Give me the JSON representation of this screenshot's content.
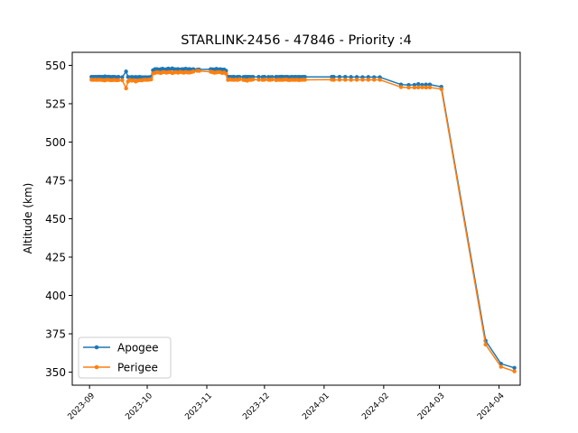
{
  "chart_data": {
    "type": "line",
    "title": "STARLINK-2456 - 47846 - Priority :4",
    "xlabel": "",
    "ylabel": "Altitude (km)",
    "ylim": [
      341.5,
      558.5
    ],
    "xlim": [
      "2023-08-23",
      "2024-04-12"
    ],
    "y_ticks": [
      350,
      375,
      400,
      425,
      450,
      475,
      500,
      525,
      550
    ],
    "x_ticks": [
      "2023-09",
      "2023-10",
      "2023-11",
      "2023-12",
      "2024-01",
      "2024-02",
      "2024-03",
      "2024-04"
    ],
    "x_tick_dates": [
      "2023-09-01",
      "2023-10-01",
      "2023-11-01",
      "2023-12-01",
      "2024-01-01",
      "2024-02-01",
      "2024-03-01",
      "2024-04-01"
    ],
    "grid": false,
    "legend_position": "lower-left",
    "x": [
      "2023-09-02",
      "2023-09-03",
      "2023-09-04",
      "2023-09-05",
      "2023-09-06",
      "2023-09-07",
      "2023-09-08",
      "2023-09-09",
      "2023-09-10",
      "2023-09-11",
      "2023-09-12",
      "2023-09-13",
      "2023-09-14",
      "2023-09-15",
      "2023-09-16",
      "2023-09-18",
      "2023-09-20",
      "2023-09-21",
      "2023-09-22",
      "2023-09-23",
      "2023-09-24",
      "2023-09-25",
      "2023-09-26",
      "2023-09-27",
      "2023-09-28",
      "2023-09-29",
      "2023-09-30",
      "2023-10-01",
      "2023-10-02",
      "2023-10-03",
      "2023-10-04",
      "2023-10-05",
      "2023-10-06",
      "2023-10-07",
      "2023-10-08",
      "2023-10-09",
      "2023-10-10",
      "2023-10-11",
      "2023-10-12",
      "2023-10-13",
      "2023-10-14",
      "2023-10-15",
      "2023-10-16",
      "2023-10-17",
      "2023-10-18",
      "2023-10-19",
      "2023-10-20",
      "2023-10-21",
      "2023-10-22",
      "2023-10-23",
      "2023-10-24",
      "2023-10-25",
      "2023-10-27",
      "2023-10-28",
      "2023-11-03",
      "2023-11-04",
      "2023-11-05",
      "2023-11-06",
      "2023-11-07",
      "2023-11-08",
      "2023-11-09",
      "2023-11-10",
      "2023-11-11",
      "2023-11-12",
      "2023-11-13",
      "2023-11-14",
      "2023-11-15",
      "2023-11-16",
      "2023-11-17",
      "2023-11-18",
      "2023-11-20",
      "2023-11-21",
      "2023-11-22",
      "2023-11-23",
      "2023-11-24",
      "2023-11-25",
      "2023-11-28",
      "2023-11-30",
      "2023-12-01",
      "2023-12-03",
      "2023-12-04",
      "2023-12-05",
      "2023-12-07",
      "2023-12-08",
      "2023-12-09",
      "2023-12-10",
      "2023-12-11",
      "2023-12-12",
      "2023-12-13",
      "2023-12-14",
      "2023-12-15",
      "2023-12-16",
      "2023-12-17",
      "2023-12-18",
      "2023-12-19",
      "2023-12-20",
      "2023-12-21",
      "2023-12-22",
      "2024-01-05",
      "2024-01-06",
      "2024-01-09",
      "2024-01-12",
      "2024-01-15",
      "2024-01-18",
      "2024-01-21",
      "2024-01-24",
      "2024-01-27",
      "2024-01-30",
      "2024-02-10",
      "2024-02-14",
      "2024-02-17",
      "2024-02-19",
      "2024-02-21",
      "2024-02-23",
      "2024-02-25",
      "2024-03-02",
      "2024-03-25",
      "2024-04-02",
      "2024-04-09"
    ],
    "series": [
      {
        "name": "Apogee",
        "color": "#1f77b4",
        "values": [
          542.5,
          542.5,
          542.5,
          542.5,
          542.6,
          542.5,
          542.5,
          542.8,
          542.5,
          542.6,
          542.4,
          542.5,
          542.5,
          542.3,
          542.5,
          542.3,
          546.0,
          542.4,
          542.3,
          542.4,
          542.3,
          542.4,
          542.3,
          542.5,
          542.3,
          542.2,
          542.3,
          542.2,
          542.3,
          542.5,
          546.8,
          547.5,
          547.6,
          547.2,
          547.5,
          547.8,
          547.3,
          547.5,
          547.9,
          547.4,
          548.0,
          547.5,
          547.4,
          547.6,
          547.2,
          547.5,
          547.5,
          547.8,
          547.4,
          547.6,
          547.3,
          547.5,
          547.2,
          547.3,
          547.5,
          547.4,
          547.3,
          547.7,
          547.3,
          547.5,
          547.2,
          547.3,
          546.5,
          542.5,
          542.5,
          542.4,
          542.6,
          542.3,
          542.5,
          542.5,
          542.4,
          542.5,
          542.5,
          542.5,
          542.4,
          542.5,
          542.5,
          542.4,
          542.5,
          542.4,
          542.3,
          542.4,
          542.5,
          542.4,
          542.5,
          542.6,
          542.4,
          542.5,
          542.5,
          542.3,
          542.5,
          542.4,
          542.5,
          542.4,
          542.5,
          542.4,
          542.5,
          542.5,
          542.5,
          542.5,
          542.5,
          542.5,
          542.4,
          542.4,
          542.3,
          542.4,
          542.3,
          542.3,
          537.5,
          537.2,
          537.3,
          537.8,
          537.3,
          537.5,
          537.5,
          536.0,
          370.5,
          355.5,
          352.8
        ]
      },
      {
        "name": "Perigee",
        "color": "#ff7f0e",
        "values": [
          540.6,
          540.5,
          540.6,
          540.5,
          540.6,
          540.5,
          540.4,
          540.2,
          540.6,
          540.5,
          540.3,
          540.4,
          540.5,
          540.3,
          540.4,
          540.3,
          535.0,
          539.5,
          540.5,
          540.0,
          540.3,
          539.5,
          540.1,
          540.3,
          540.2,
          540.5,
          540.6,
          540.5,
          540.7,
          540.8,
          544.8,
          545.0,
          545.5,
          545.3,
          545.0,
          545.5,
          545.6,
          545.2,
          545.5,
          545.6,
          545.0,
          545.4,
          545.6,
          545.2,
          545.7,
          545.5,
          545.2,
          545.6,
          545.4,
          545.3,
          545.6,
          546.0,
          546.5,
          546.4,
          545.8,
          545.5,
          545.2,
          545.4,
          545.6,
          545.5,
          545.0,
          545.3,
          544.6,
          540.5,
          540.8,
          540.6,
          540.5,
          540.7,
          540.5,
          540.9,
          540.5,
          540.4,
          540.0,
          540.6,
          540.5,
          540.8,
          540.6,
          540.5,
          540.7,
          540.6,
          540.5,
          540.8,
          540.4,
          540.6,
          540.5,
          540.5,
          540.6,
          540.8,
          540.5,
          540.4,
          540.6,
          540.5,
          540.5,
          540.6,
          540.4,
          540.5,
          540.6,
          540.6,
          540.7,
          540.5,
          540.6,
          540.6,
          540.5,
          540.6,
          540.6,
          540.6,
          540.6,
          540.6,
          535.8,
          535.5,
          535.5,
          535.6,
          535.7,
          535.5,
          535.6,
          534.5,
          368.0,
          353.5,
          350.5
        ]
      }
    ]
  }
}
